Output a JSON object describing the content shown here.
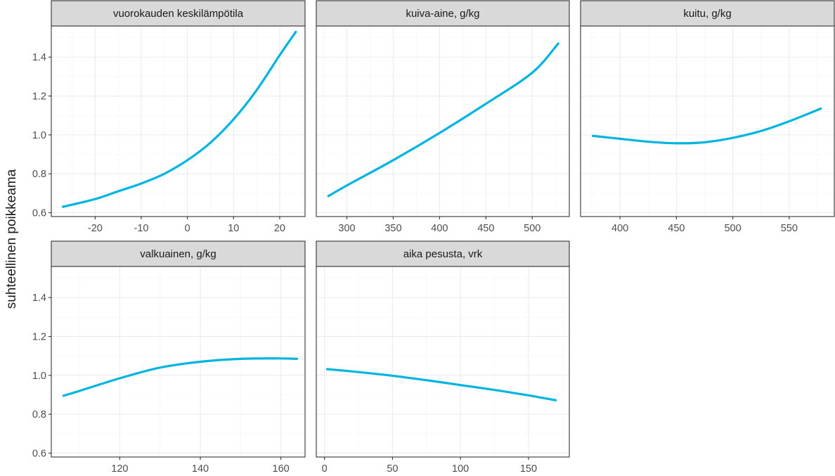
{
  "chart_data": {
    "type": "line",
    "ylabel": "suhteellinen poikkeama",
    "ylim": [
      0.58,
      1.56
    ],
    "y_ticks": [
      0.6,
      0.8,
      1.0,
      1.2,
      1.4
    ],
    "y_tick_labels": [
      "0.6",
      "0.8",
      "1.0",
      "1.2",
      "1.4"
    ],
    "line_color": "#00b4e0",
    "grid": true,
    "panels": [
      {
        "title": "vuorokauden keskilämpötila",
        "xlim": [
          -29.5,
          25.5
        ],
        "x_ticks": [
          -20,
          -10,
          0,
          10,
          20
        ],
        "x_tick_labels": [
          "-20",
          "-10",
          "0",
          "10",
          "20"
        ],
        "x": [
          -27,
          -20,
          -15,
          -10,
          -5,
          0,
          5,
          10,
          15,
          20,
          23.5
        ],
        "y": [
          0.63,
          0.67,
          0.71,
          0.75,
          0.8,
          0.87,
          0.96,
          1.08,
          1.23,
          1.41,
          1.53
        ]
      },
      {
        "title": "kuiva-aine, g/kg",
        "xlim": [
          267,
          540
        ],
        "x_ticks": [
          300,
          350,
          400,
          450,
          500
        ],
        "x_tick_labels": [
          "300",
          "350",
          "400",
          "450",
          "500"
        ],
        "x": [
          280,
          300,
          350,
          400,
          450,
          500,
          528
        ],
        "y": [
          0.685,
          0.74,
          0.87,
          1.01,
          1.16,
          1.32,
          1.47
        ]
      },
      {
        "title": "kuitu, g/kg",
        "xlim": [
          365,
          590
        ],
        "x_ticks": [
          400,
          450,
          500,
          550
        ],
        "x_tick_labels": [
          "400",
          "450",
          "500",
          "550"
        ],
        "x": [
          376,
          400,
          425,
          450,
          475,
          500,
          525,
          550,
          578
        ],
        "y": [
          0.995,
          0.98,
          0.965,
          0.957,
          0.962,
          0.985,
          1.02,
          1.07,
          1.135
        ]
      },
      {
        "title": "valkuainen, g/kg",
        "xlim": [
          103,
          166
        ],
        "x_ticks": [
          120,
          140,
          160
        ],
        "x_tick_labels": [
          "120",
          "140",
          "160"
        ],
        "x": [
          106,
          110,
          120,
          130,
          140,
          150,
          160,
          164
        ],
        "y": [
          0.895,
          0.92,
          0.985,
          1.04,
          1.07,
          1.085,
          1.087,
          1.085
        ]
      },
      {
        "title": "aika pesusta, vrk",
        "xlim": [
          -6,
          180
        ],
        "x_ticks": [
          0,
          50,
          100,
          150
        ],
        "x_tick_labels": [
          "0",
          "50",
          "100",
          "150"
        ],
        "x": [
          2,
          25,
          50,
          75,
          100,
          125,
          150,
          170
        ],
        "y": [
          1.032,
          1.017,
          0.998,
          0.975,
          0.95,
          0.925,
          0.897,
          0.872
        ]
      }
    ]
  }
}
